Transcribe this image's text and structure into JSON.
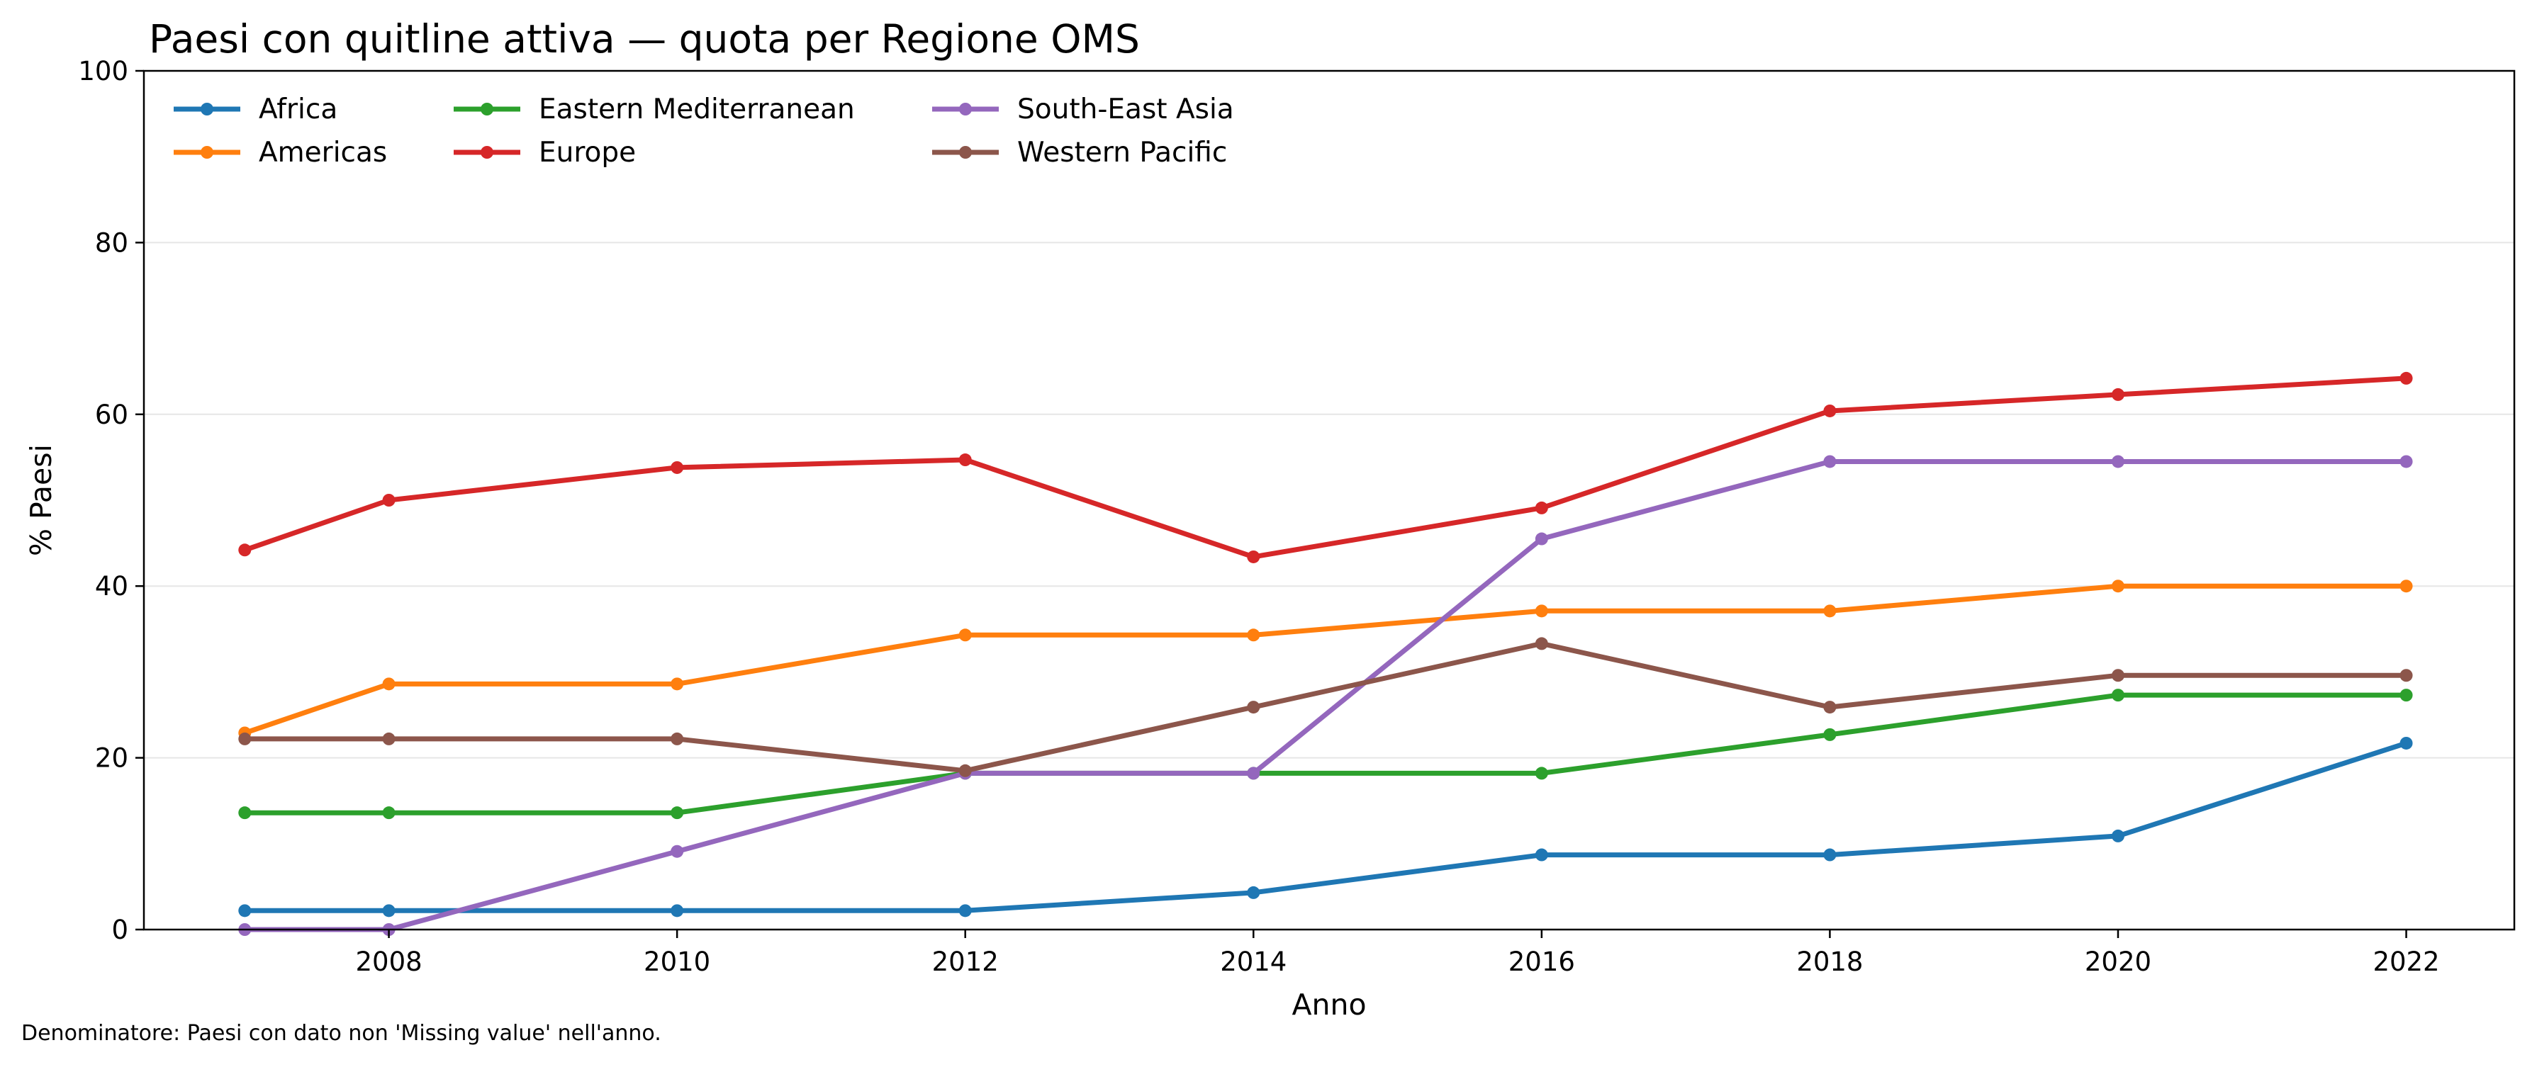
{
  "chart_data": {
    "type": "line",
    "title": "Paesi con quitline attiva — quota per Regione OMS",
    "xlabel": "Anno",
    "ylabel": "% Paesi",
    "xlim": [
      2006.3,
      2022.75
    ],
    "ylim": [
      0,
      100
    ],
    "xticks": [
      2008,
      2010,
      2012,
      2014,
      2016,
      2018,
      2020,
      2022
    ],
    "yticks": [
      0,
      20,
      40,
      60,
      80,
      100
    ],
    "grid": "horizontal",
    "legend": "top-left",
    "x": [
      2007,
      2008,
      2010,
      2012,
      2014,
      2016,
      2018,
      2020,
      2022
    ],
    "series": [
      {
        "name": "Africa",
        "color": "#1f77b4",
        "values": [
          2.2,
          2.2,
          2.2,
          2.2,
          4.3,
          8.7,
          8.7,
          10.9,
          21.7
        ]
      },
      {
        "name": "Americas",
        "color": "#ff7f0e",
        "values": [
          22.9,
          28.6,
          28.6,
          34.3,
          34.3,
          37.1,
          37.1,
          40.0,
          40.0
        ]
      },
      {
        "name": "Eastern Mediterranean",
        "color": "#2ca02c",
        "values": [
          13.6,
          13.6,
          13.6,
          18.2,
          18.2,
          18.2,
          22.7,
          27.3,
          27.3
        ]
      },
      {
        "name": "Europe",
        "color": "#d62728",
        "values": [
          44.2,
          50.0,
          53.8,
          54.7,
          43.4,
          49.1,
          60.4,
          62.3,
          64.2
        ]
      },
      {
        "name": "South-East Asia",
        "color": "#9467bd",
        "values": [
          0.0,
          0.0,
          9.1,
          18.2,
          18.2,
          45.5,
          54.5,
          54.5,
          54.5
        ]
      },
      {
        "name": "Western Pacific",
        "color": "#8c564b",
        "values": [
          22.2,
          22.2,
          22.2,
          18.5,
          25.9,
          33.3,
          25.9,
          29.6,
          29.6
        ]
      }
    ]
  },
  "footnote": "Denominatore: Paesi con dato non 'Missing value' nell'anno."
}
